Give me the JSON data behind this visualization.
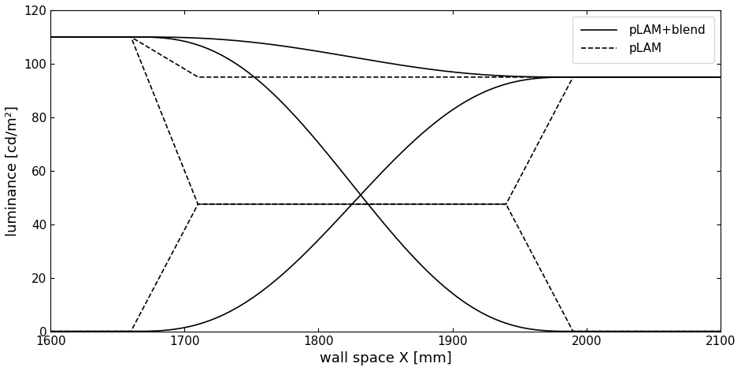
{
  "xlabel": "wall space X [mm]",
  "ylabel": "luminance [cd/m²]",
  "xlim": [
    1600,
    2100
  ],
  "ylim": [
    0,
    120
  ],
  "xticks": [
    1600,
    1700,
    1800,
    1900,
    2000,
    2100
  ],
  "yticks": [
    0,
    20,
    40,
    60,
    80,
    100,
    120
  ],
  "legend_labels": [
    "pLAM+blend",
    "pLAM"
  ],
  "line_color": "#000000",
  "background_color": "#ffffff",
  "OL": 1660,
  "OR": 1990,
  "edge_mm": 50,
  "p1_max": 110.0,
  "p2_max": 95.0,
  "p_mid": 47.5,
  "figsize": [
    9.41,
    4.71
  ],
  "dpi": 100,
  "linewidth": 1.2,
  "tick_labelsize": 11,
  "xlabel_fontsize": 13,
  "ylabel_fontsize": 13,
  "legend_fontsize": 11
}
